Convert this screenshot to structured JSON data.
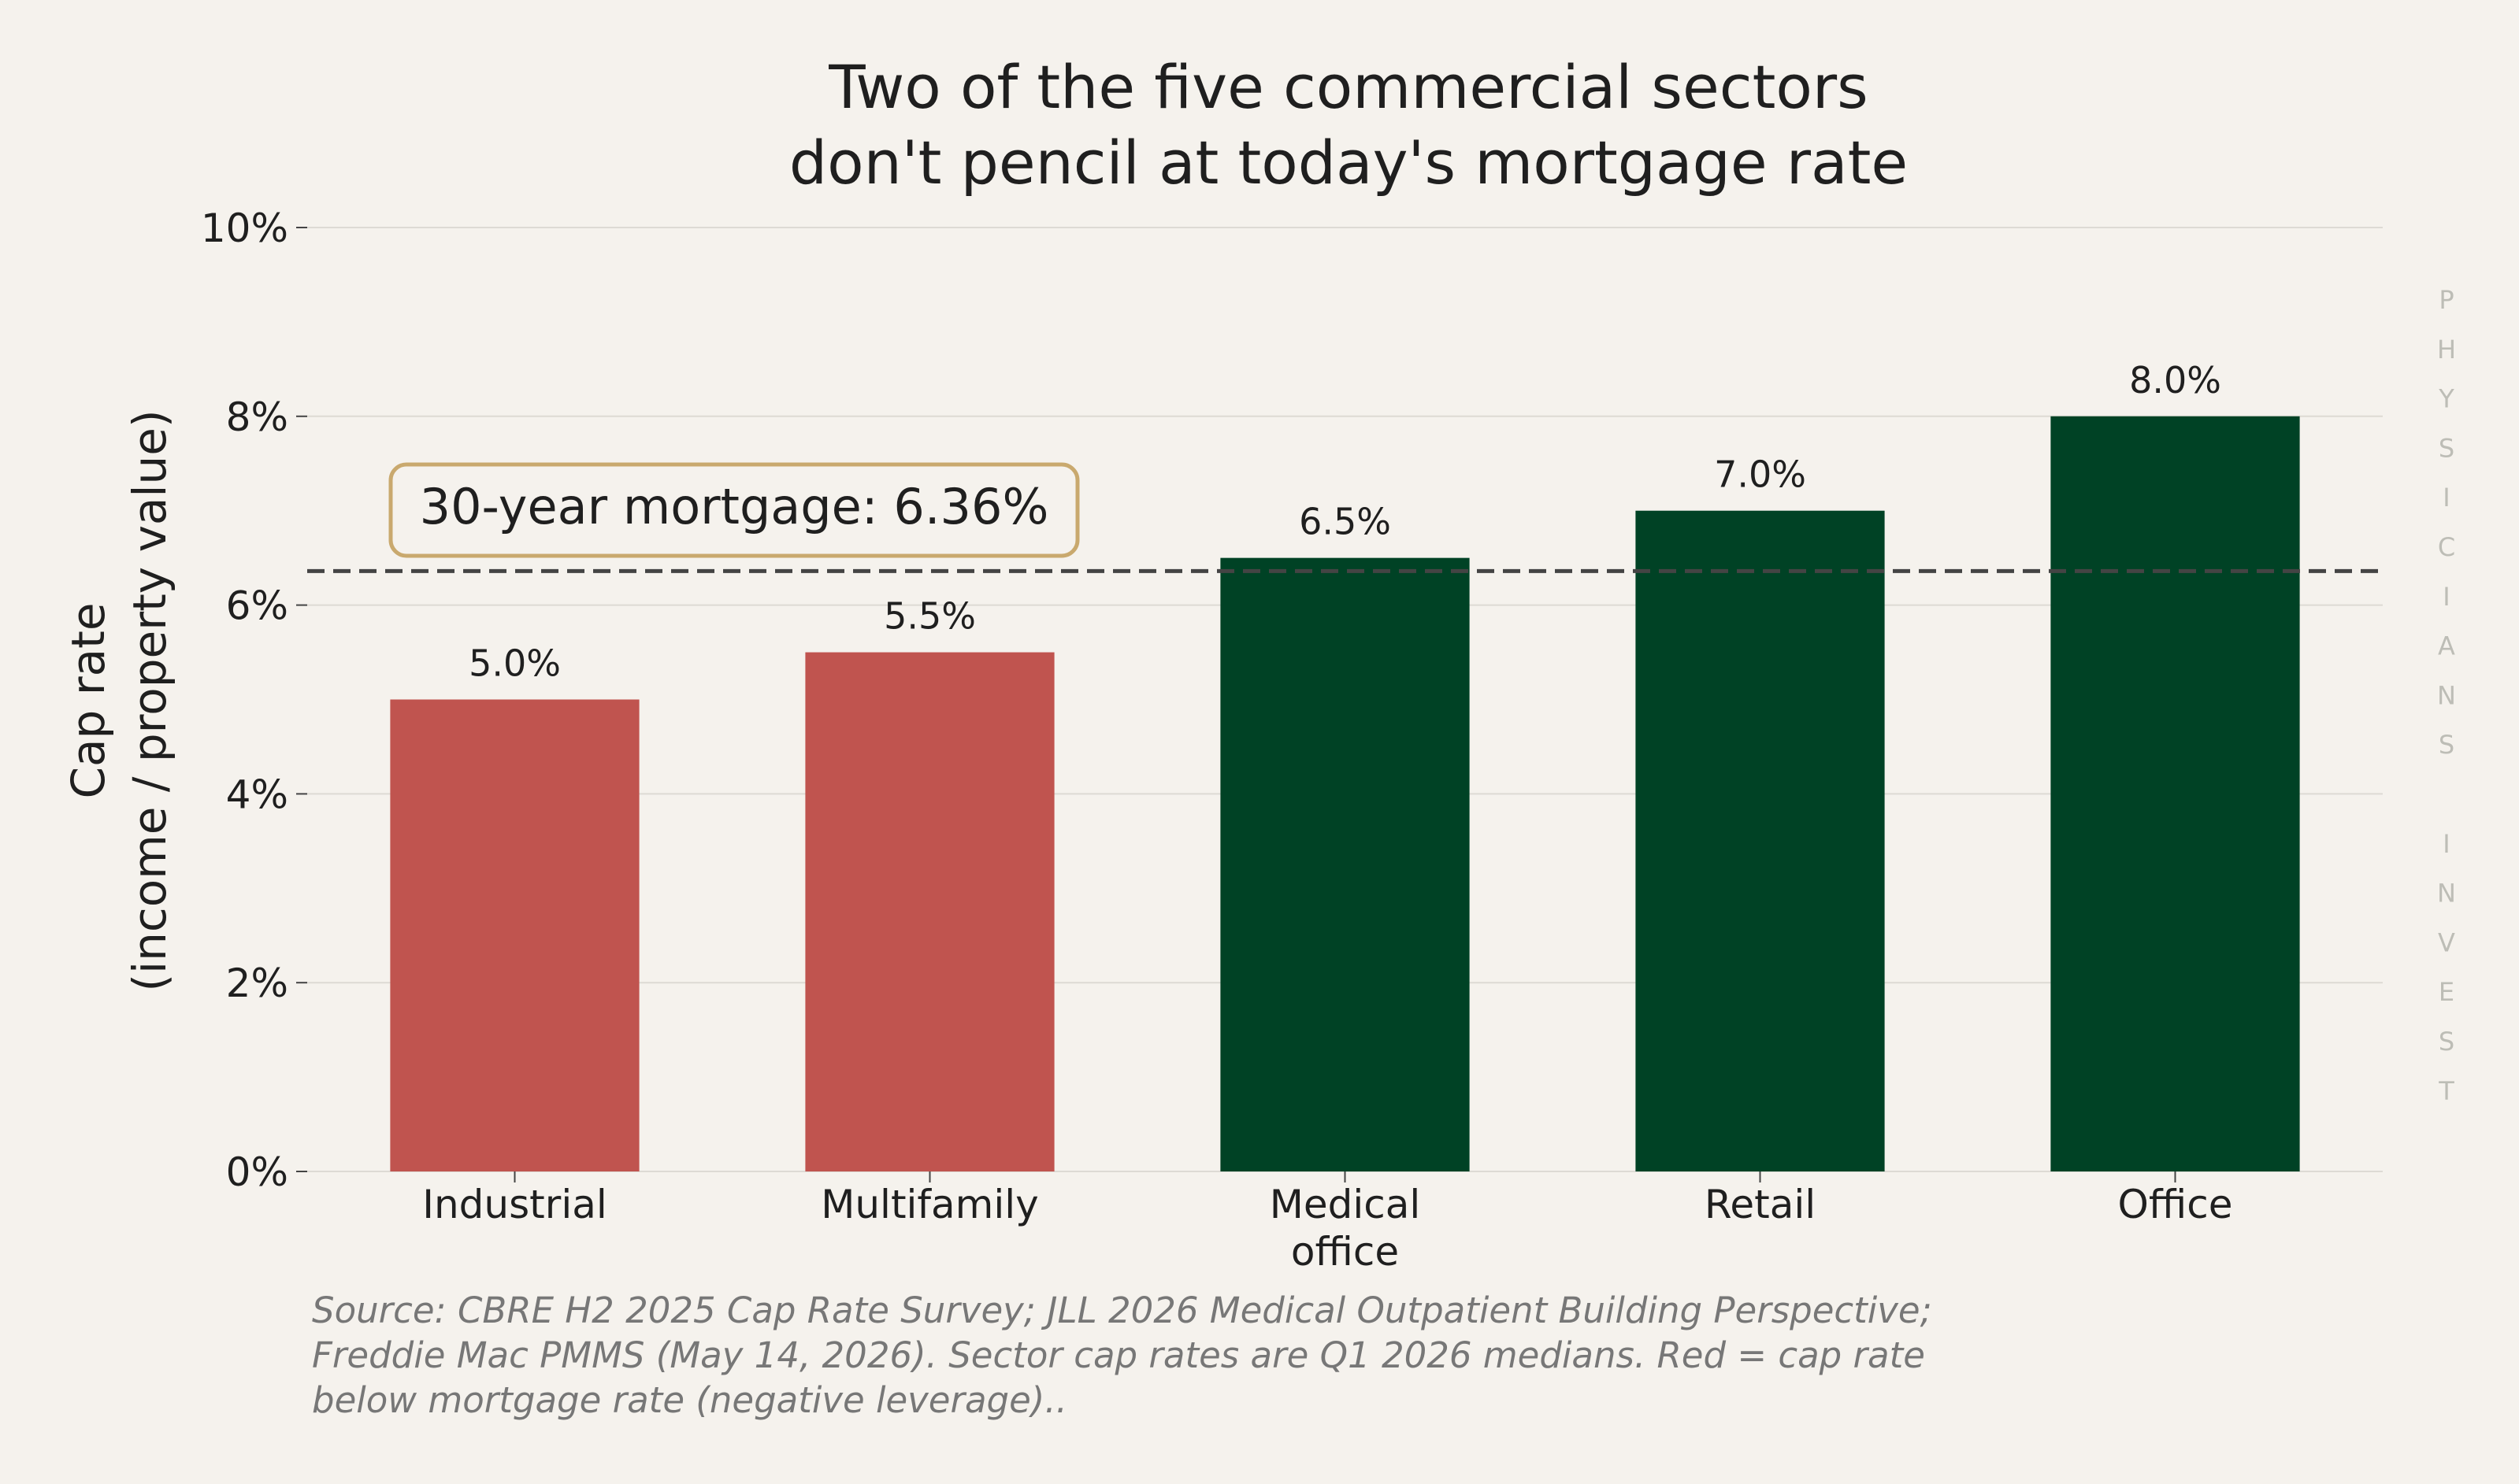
{
  "chart_data": {
    "type": "bar",
    "title": [
      "Two of the five commercial sectors",
      "don't pencil at today's mortgage rate"
    ],
    "ylabel": [
      "Cap rate",
      "(income / property value)"
    ],
    "categories": [
      [
        "Industrial"
      ],
      [
        "Multifamily"
      ],
      [
        "Medical",
        "office"
      ],
      [
        "Retail"
      ],
      [
        "Office"
      ]
    ],
    "values": [
      5.0,
      5.5,
      6.5,
      7.0,
      8.0
    ],
    "value_labels": [
      "5.0%",
      "5.5%",
      "6.5%",
      "7.0%",
      "8.0%"
    ],
    "ylim": [
      0,
      10
    ],
    "yticks": [
      0,
      2,
      4,
      6,
      8,
      10
    ],
    "ytick_labels": [
      "0%",
      "2%",
      "4%",
      "6%",
      "8%",
      "10%"
    ],
    "reference_line": {
      "value": 6.36,
      "label": "30-year mortgage: 6.36%",
      "style": "dashed"
    },
    "grid": "horizontal",
    "colors": {
      "below_mortgage": "#C0544F",
      "above_mortgage": "#004225",
      "background": "#F5F2ED",
      "annotation_border": "#C9A96E"
    },
    "source": [
      "Source: CBRE H2 2025 Cap Rate Survey; JLL 2026 Medical Outpatient Building Perspective;",
      "Freddie Mac PMMS (May 14, 2026). Sector cap rates are Q1 2026 medians. Red = cap rate",
      "below mortgage rate (negative leverage).."
    ],
    "watermark": "PHYSICIANS INVEST"
  }
}
